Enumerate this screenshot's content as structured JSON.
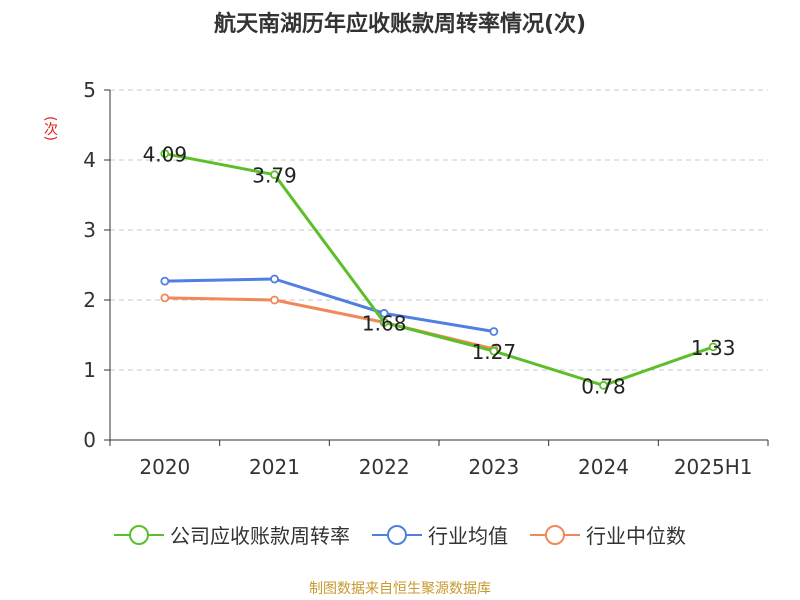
{
  "chart_data": {
    "type": "line",
    "title": "航天南湖历年应收账款周转率情况(次)",
    "ylabel": "(次)",
    "categories": [
      "2020",
      "2021",
      "2022",
      "2023",
      "2024",
      "2025H1"
    ],
    "ylim": [
      0,
      5
    ],
    "yticks": [
      "0",
      "1",
      "2",
      "3",
      "4",
      "5"
    ],
    "grid": true,
    "legend_position": "bottom",
    "series": [
      {
        "name": "公司应收账款周转率",
        "color": "#5cbf2a",
        "values": [
          4.09,
          3.79,
          1.68,
          1.27,
          0.78,
          1.33
        ],
        "labels": [
          "4.09",
          "3.79",
          "1.68",
          "1.27",
          "0.78",
          "1.33"
        ]
      },
      {
        "name": "行业均值",
        "color": "#4f7fe0",
        "values": [
          2.27,
          2.3,
          1.81,
          1.55,
          null,
          null
        ]
      },
      {
        "name": "行业中位数",
        "color": "#f0885a",
        "values": [
          2.03,
          2.0,
          1.68,
          1.3,
          null,
          null
        ]
      }
    ]
  },
  "source": "制图数据来自恒生聚源数据库"
}
